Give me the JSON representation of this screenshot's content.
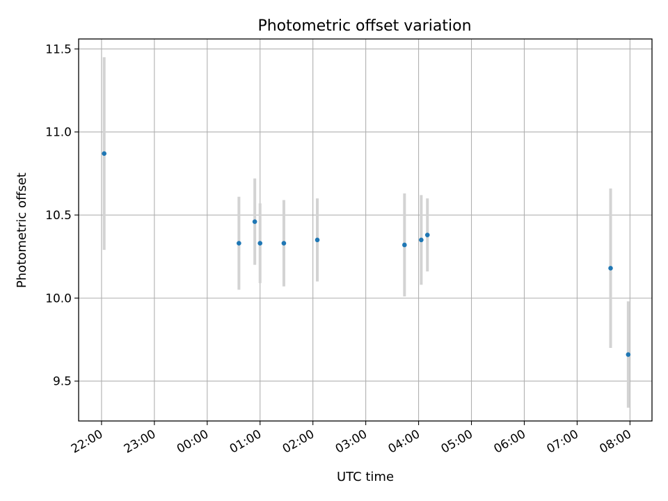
{
  "chart_data": {
    "type": "scatter",
    "title": "Photometric offset variation",
    "xlabel": "UTC time",
    "ylabel": "Photometric offset",
    "ylim": [
      9.26,
      11.56
    ],
    "xlim": [
      "21:34",
      "08:25"
    ],
    "grid": true,
    "x_tick_labels": [
      "22:00",
      "23:00",
      "00:00",
      "01:00",
      "02:00",
      "03:00",
      "04:00",
      "05:00",
      "06:00",
      "07:00",
      "08:00"
    ],
    "y_tick_values": [
      9.5,
      10.0,
      10.5,
      11.0,
      11.5
    ],
    "y_tick_labels": [
      "9.5",
      "10.0",
      "10.5",
      "11.0",
      "11.5"
    ],
    "series": [
      {
        "color": "#1f77b4",
        "errorbar_color": "#d3d3d3",
        "points": [
          {
            "x": "22:03",
            "y": 10.87,
            "err": 0.58
          },
          {
            "x": "00:36",
            "y": 10.33,
            "err": 0.28
          },
          {
            "x": "00:54",
            "y": 10.46,
            "err": 0.26
          },
          {
            "x": "01:00",
            "y": 10.33,
            "err": 0.24
          },
          {
            "x": "01:27",
            "y": 10.33,
            "err": 0.26
          },
          {
            "x": "02:05",
            "y": 10.35,
            "err": 0.25
          },
          {
            "x": "03:44",
            "y": 10.32,
            "err": 0.31
          },
          {
            "x": "04:03",
            "y": 10.35,
            "err": 0.27
          },
          {
            "x": "04:10",
            "y": 10.38,
            "err": 0.22
          },
          {
            "x": "07:38",
            "y": 10.18,
            "err": 0.48
          },
          {
            "x": "07:58",
            "y": 9.66,
            "err": 0.32
          }
        ]
      }
    ]
  }
}
